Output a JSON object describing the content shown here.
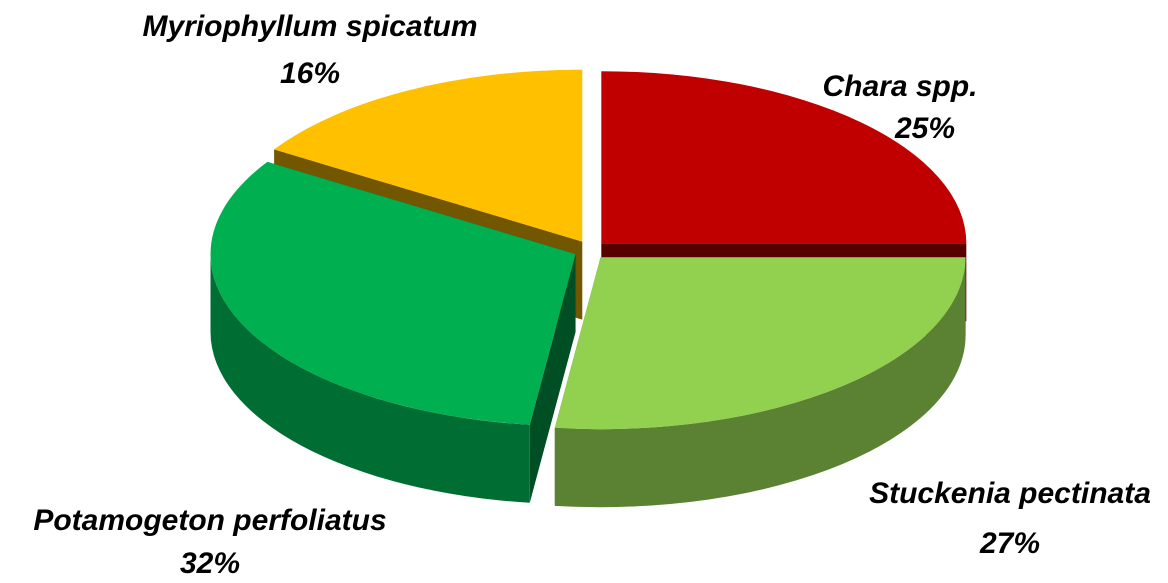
{
  "chart_data": {
    "type": "pie",
    "categories": [
      "Chara spp.",
      "Stuckenia pectinata",
      "Potamogeton perfoliatus",
      "Myriophyllum spicatum"
    ],
    "values": [
      25,
      27,
      32,
      16
    ],
    "value_labels": [
      "25%",
      "27%",
      "32%",
      "16%"
    ],
    "colors": [
      "#c00000",
      "#92d050",
      "#00b050",
      "#ffc000"
    ]
  }
}
